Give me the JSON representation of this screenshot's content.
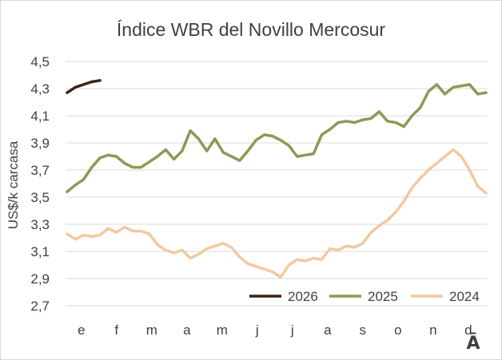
{
  "chart_data": {
    "type": "line",
    "title": "Índice WBR del Novillo Mercosur",
    "ylabel": "US$/k carcasa",
    "xlabel": "",
    "ylim": [
      2.7,
      4.5
    ],
    "yticks": [
      "4,5",
      "4,3",
      "4,1",
      "3,9",
      "3,7",
      "3,5",
      "3,3",
      "3,1",
      "2,9",
      "2,7"
    ],
    "ytick_values": [
      4.5,
      4.3,
      4.1,
      3.9,
      3.7,
      3.5,
      3.3,
      3.1,
      2.9,
      2.7
    ],
    "months": [
      "e",
      "f",
      "m",
      "a",
      "m",
      "j",
      "j",
      "a",
      "s",
      "o",
      "n",
      "d"
    ],
    "corner_mark": "Ā",
    "grid": true,
    "legend_position": "bottom-right",
    "series": [
      {
        "name": "2026",
        "color": "#3b2314",
        "values": [
          4.27,
          4.31,
          4.33,
          4.35,
          4.36
        ]
      },
      {
        "name": "2025",
        "color": "#8c9a55",
        "values": [
          3.54,
          3.59,
          3.63,
          3.72,
          3.79,
          3.81,
          3.8,
          3.75,
          3.72,
          3.72,
          3.76,
          3.8,
          3.85,
          3.78,
          3.84,
          3.99,
          3.93,
          3.84,
          3.93,
          3.83,
          3.8,
          3.77,
          3.84,
          3.92,
          3.96,
          3.95,
          3.92,
          3.88,
          3.8,
          3.81,
          3.82,
          3.96,
          4.0,
          4.05,
          4.06,
          4.05,
          4.07,
          4.08,
          4.13,
          4.06,
          4.05,
          4.02,
          4.1,
          4.16,
          4.28,
          4.33,
          4.26,
          4.31,
          4.32,
          4.33,
          4.26,
          4.27
        ]
      },
      {
        "name": "2024",
        "color": "#f2c9a0",
        "values": [
          3.23,
          3.19,
          3.22,
          3.21,
          3.22,
          3.27,
          3.24,
          3.28,
          3.25,
          3.25,
          3.23,
          3.15,
          3.11,
          3.09,
          3.11,
          3.05,
          3.08,
          3.12,
          3.14,
          3.16,
          3.13,
          3.06,
          3.01,
          2.99,
          2.97,
          2.95,
          2.91,
          3.0,
          3.04,
          3.03,
          3.05,
          3.04,
          3.12,
          3.11,
          3.14,
          3.13,
          3.16,
          3.24,
          3.29,
          3.33,
          3.39,
          3.47,
          3.57,
          3.64,
          3.7,
          3.75,
          3.8,
          3.85,
          3.8,
          3.7,
          3.58,
          3.53
        ]
      }
    ]
  }
}
